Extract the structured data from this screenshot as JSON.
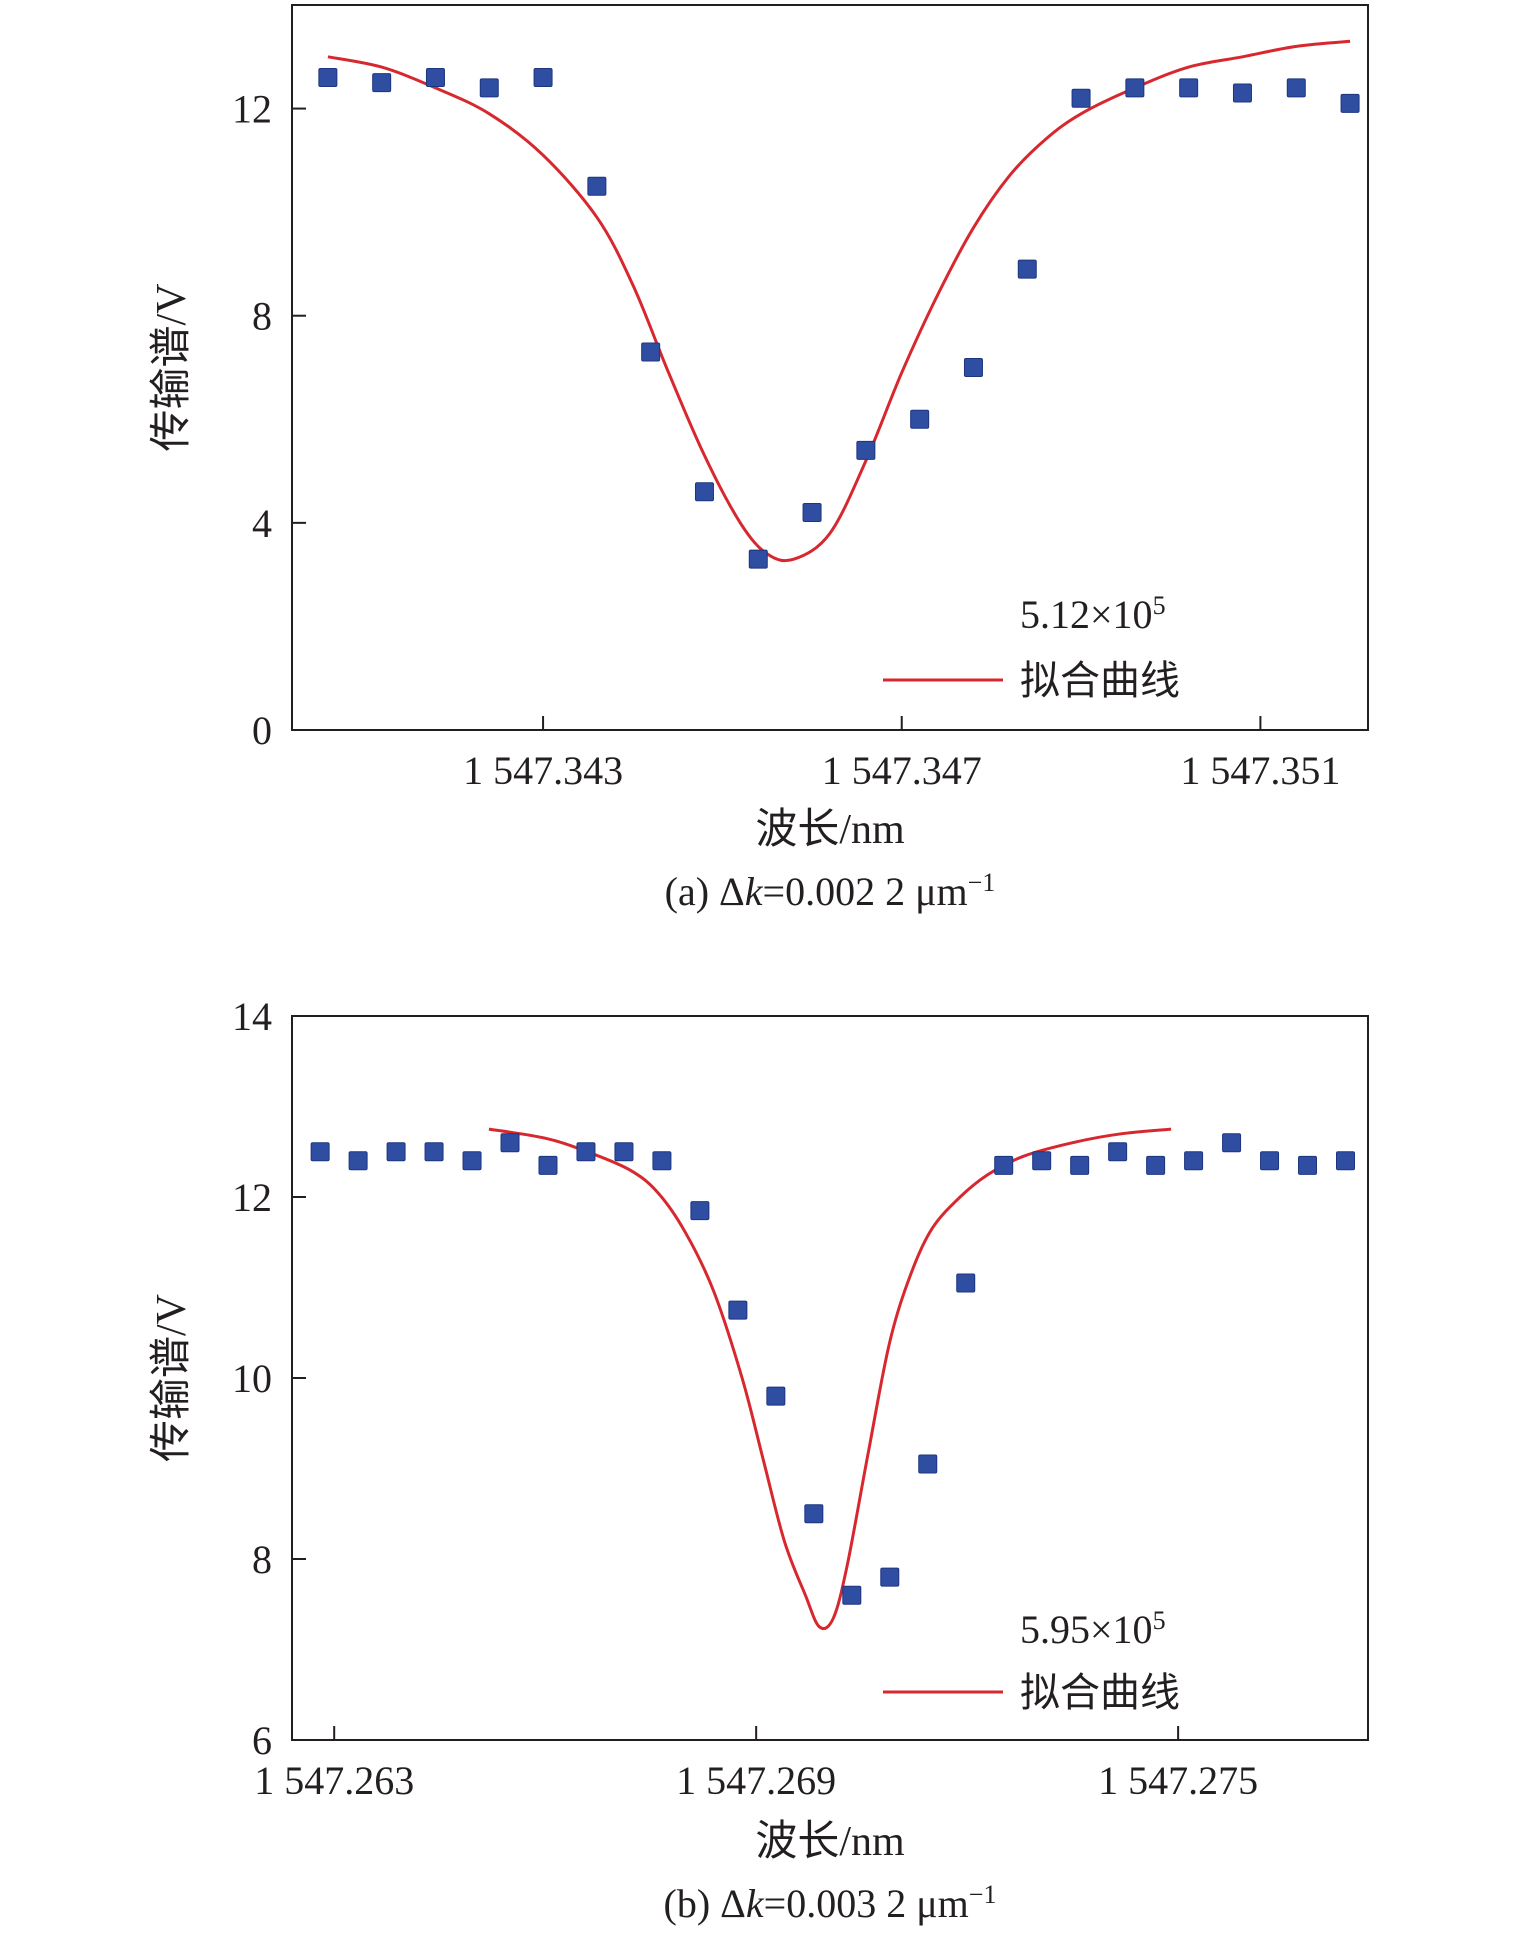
{
  "chart_data": [
    {
      "type": "scatter",
      "panel_label": "(a)",
      "caption": {
        "prefix": "(a) Δ",
        "k": "k",
        "mid": "=0.002 2 μm",
        "sup": "−1"
      },
      "xlabel": "波长/nm",
      "ylabel": "传输谱/V",
      "xlim": [
        1547.3402,
        1547.3522
      ],
      "ylim": [
        0,
        14
      ],
      "xticks": [
        1547.343,
        1547.347,
        1547.351
      ],
      "xtick_labels": [
        "1 547.343",
        "1 547.347",
        "1 547.351"
      ],
      "yticks": [
        0,
        4,
        8,
        12
      ],
      "ytick_labels": [
        "0",
        "4",
        "8",
        "12"
      ],
      "grid": false,
      "legend_position": "bottom-right",
      "series": [
        {
          "name": "5.12×105",
          "legend_main": "5.12×10",
          "legend_sup": "5",
          "color": "#2f4ea2",
          "marker": "square",
          "x": [
            1547.3406,
            1547.3412,
            1547.3418,
            1547.3424,
            1547.343,
            1547.3436,
            1547.3442,
            1547.3448,
            1547.3454,
            1547.346,
            1547.3466,
            1547.3472,
            1547.3478,
            1547.3484,
            1547.349,
            1547.3496,
            1547.3502,
            1547.3508,
            1547.3514,
            1547.352
          ],
          "y": [
            12.6,
            12.5,
            12.6,
            12.4,
            12.6,
            10.5,
            7.3,
            4.6,
            3.3,
            4.2,
            5.4,
            6.0,
            7.0,
            8.9,
            12.2,
            12.4,
            12.4,
            12.3,
            12.4,
            12.1
          ]
        },
        {
          "name": "拟合曲线",
          "color": "#d7282f",
          "style": "line",
          "x": [
            1547.3406,
            1547.3412,
            1547.3418,
            1547.3424,
            1547.343,
            1547.3436,
            1547.344,
            1547.3444,
            1547.3448,
            1547.3452,
            1547.3455,
            1547.3458,
            1547.3462,
            1547.3466,
            1547.347,
            1547.3474,
            1547.3478,
            1547.3482,
            1547.3486,
            1547.349,
            1547.3496,
            1547.3502,
            1547.3508,
            1547.3514,
            1547.352
          ],
          "y": [
            13.0,
            12.8,
            12.4,
            11.9,
            11.1,
            9.9,
            8.6,
            6.9,
            5.3,
            4.0,
            3.4,
            3.3,
            3.8,
            5.2,
            6.9,
            8.4,
            9.7,
            10.7,
            11.4,
            11.9,
            12.4,
            12.8,
            13.0,
            13.2,
            13.3
          ]
        }
      ]
    },
    {
      "type": "scatter",
      "panel_label": "(b)",
      "caption": {
        "prefix": "(b) Δ",
        "k": "k",
        "mid": "=0.003 2 μm",
        "sup": "−1"
      },
      "xlabel": "波长/nm",
      "ylabel": "传输谱/V",
      "xlim": [
        1547.2624,
        1547.2777
      ],
      "ylim": [
        6,
        14
      ],
      "xticks": [
        1547.263,
        1547.269,
        1547.275
      ],
      "xtick_labels": [
        "1 547.263",
        "1 547.269",
        "1 547.275"
      ],
      "yticks": [
        6,
        8,
        10,
        12,
        14
      ],
      "ytick_labels": [
        "6",
        "8",
        "10",
        "12",
        "14"
      ],
      "grid": false,
      "legend_position": "bottom-right",
      "series": [
        {
          "name": "5.95×105",
          "legend_main": "5.95×10",
          "legend_sup": "5",
          "color": "#2f4ea2",
          "marker": "square",
          "x": [
            1547.2628,
            1547.26334,
            1547.26388,
            1547.26442,
            1547.26496,
            1547.2655,
            1547.26604,
            1547.26658,
            1547.26712,
            1547.26766,
            1547.2682,
            1547.26874,
            1547.26928,
            1547.26982,
            1547.27036,
            1547.2709,
            1547.27144,
            1547.27198,
            1547.27252,
            1547.27306,
            1547.2736,
            1547.27414,
            1547.27468,
            1547.27522,
            1547.27576,
            1547.2763,
            1547.27684,
            1547.27738
          ],
          "y": [
            12.5,
            12.4,
            12.5,
            12.5,
            12.4,
            12.6,
            12.35,
            12.5,
            12.5,
            12.4,
            11.85,
            10.75,
            9.8,
            8.5,
            7.6,
            7.8,
            9.05,
            11.05,
            12.35,
            12.4,
            12.35,
            12.5,
            12.35,
            12.4,
            12.6,
            12.4,
            12.35,
            12.4
          ]
        },
        {
          "name": "拟合曲线",
          "color": "#d7282f",
          "style": "line",
          "x": [
            1547.2652,
            1547.266,
            1547.2666,
            1547.2672,
            1547.2676,
            1547.268,
            1547.2684,
            1547.2688,
            1547.2691,
            1547.2694,
            1547.2697,
            1547.2699,
            1547.2701,
            1547.2703,
            1547.2706,
            1547.2709,
            1547.2712,
            1547.2715,
            1547.2719,
            1547.2723,
            1547.2728,
            1547.2735,
            1547.2742,
            1547.2749
          ],
          "y": [
            12.75,
            12.65,
            12.5,
            12.3,
            12.05,
            11.6,
            10.95,
            10.0,
            9.1,
            8.2,
            7.6,
            7.25,
            7.35,
            7.95,
            9.2,
            10.4,
            11.15,
            11.65,
            12.0,
            12.25,
            12.45,
            12.6,
            12.7,
            12.75
          ]
        }
      ]
    }
  ]
}
